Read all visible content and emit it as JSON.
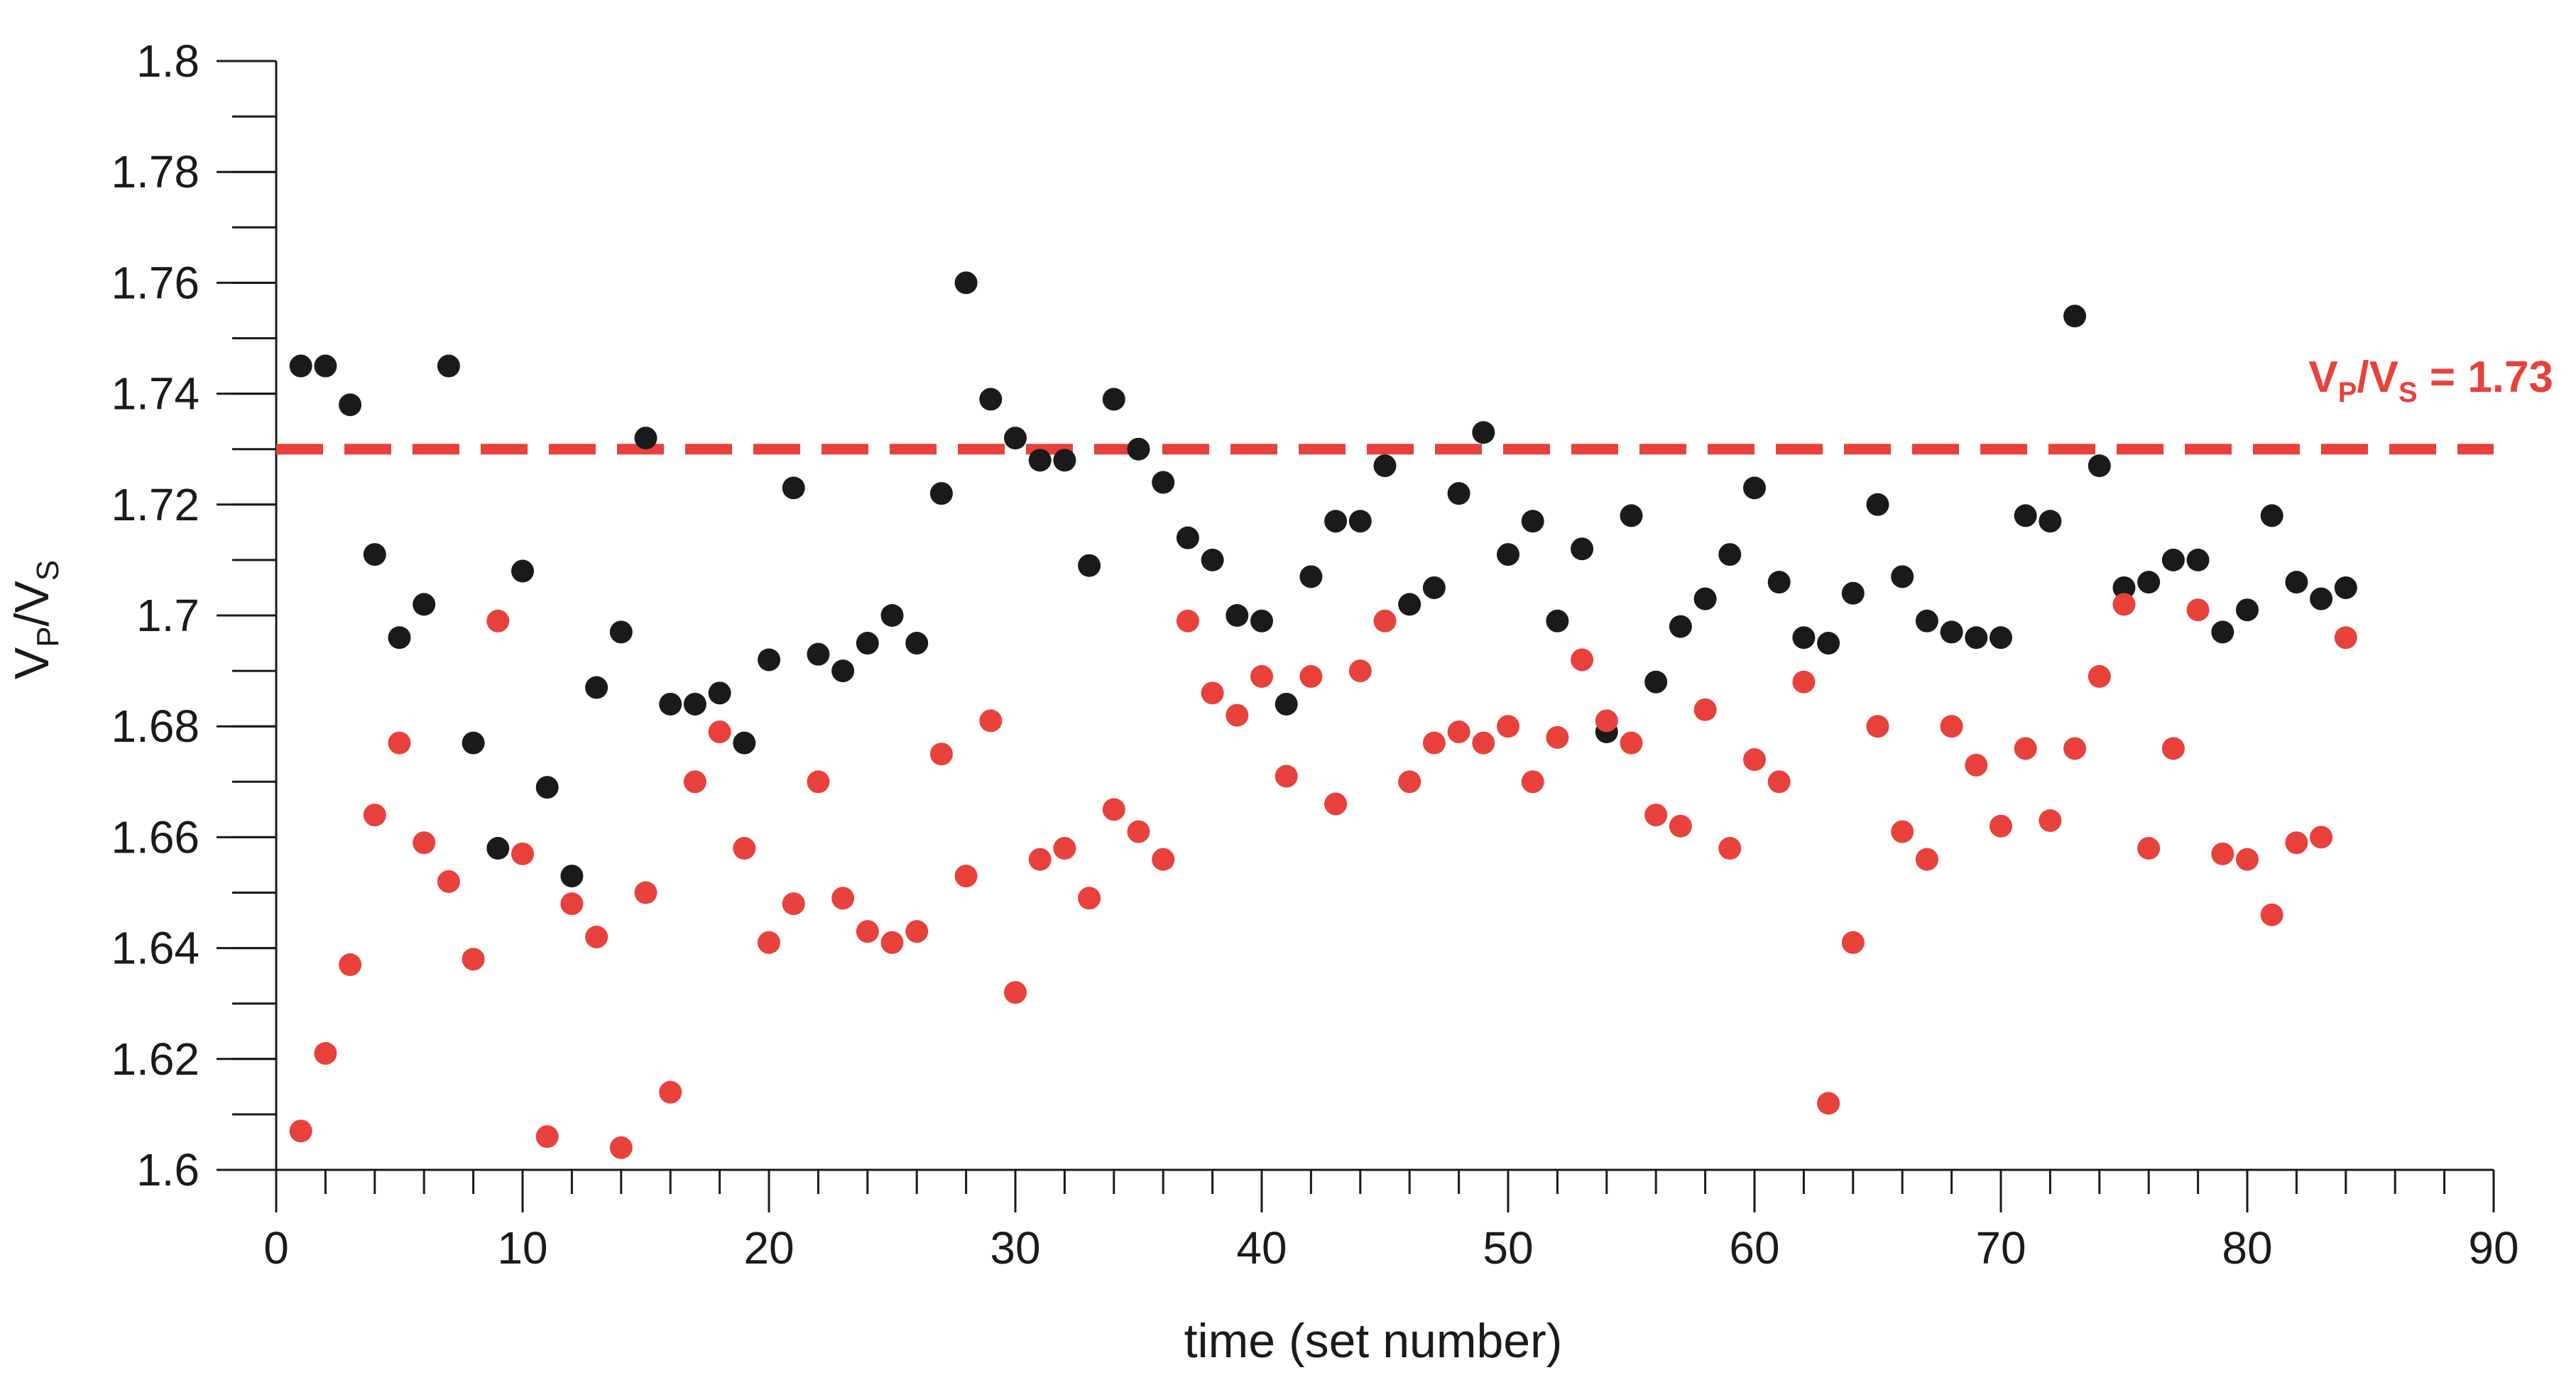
{
  "chart_data": {
    "type": "scatter",
    "title": "",
    "xlabel": "time (set number)",
    "ylabel": {
      "base": "V",
      "sub1": "P",
      "mid": "/V",
      "sub2": "S"
    },
    "xlim": [
      0,
      90
    ],
    "ylim": [
      1.6,
      1.8
    ],
    "x_ticks": [
      "0",
      "10",
      "20",
      "30",
      "40",
      "50",
      "60",
      "70",
      "80",
      "90"
    ],
    "x_minor_step": 2,
    "y_ticks": [
      "1.6",
      "1.62",
      "1.64",
      "1.66",
      "1.68",
      "1.7",
      "1.72",
      "1.74",
      "1.76",
      "1.78",
      "1.8"
    ],
    "y_minor_step": 0.01,
    "grid": false,
    "reference_line": {
      "y": 1.73,
      "style": "dashed",
      "color": "#e8413c",
      "label": {
        "base": "V",
        "sub1": "P",
        "mid": "/V",
        "sub2": "S",
        "tail": " = 1.73"
      }
    },
    "series": [
      {
        "color": "#1a1a1a",
        "points": [
          [
            1,
            1.745
          ],
          [
            2,
            1.745
          ],
          [
            3,
            1.738
          ],
          [
            4,
            1.711
          ],
          [
            5,
            1.696
          ],
          [
            6,
            1.702
          ],
          [
            7,
            1.745
          ],
          [
            8,
            1.677
          ],
          [
            9,
            1.658
          ],
          [
            10,
            1.708
          ],
          [
            11,
            1.669
          ],
          [
            12,
            1.653
          ],
          [
            13,
            1.687
          ],
          [
            14,
            1.697
          ],
          [
            15,
            1.732
          ],
          [
            16,
            1.684
          ],
          [
            17,
            1.684
          ],
          [
            18,
            1.686
          ],
          [
            19,
            1.677
          ],
          [
            20,
            1.692
          ],
          [
            21,
            1.723
          ],
          [
            22,
            1.693
          ],
          [
            23,
            1.69
          ],
          [
            24,
            1.695
          ],
          [
            25,
            1.7
          ],
          [
            26,
            1.695
          ],
          [
            27,
            1.722
          ],
          [
            28,
            1.76
          ],
          [
            29,
            1.739
          ],
          [
            30,
            1.732
          ],
          [
            31,
            1.728
          ],
          [
            32,
            1.728
          ],
          [
            33,
            1.709
          ],
          [
            34,
            1.739
          ],
          [
            35,
            1.73
          ],
          [
            36,
            1.724
          ],
          [
            37,
            1.714
          ],
          [
            38,
            1.71
          ],
          [
            39,
            1.7
          ],
          [
            40,
            1.699
          ],
          [
            41,
            1.684
          ],
          [
            42,
            1.707
          ],
          [
            43,
            1.717
          ],
          [
            44,
            1.717
          ],
          [
            45,
            1.727
          ],
          [
            46,
            1.702
          ],
          [
            47,
            1.705
          ],
          [
            48,
            1.722
          ],
          [
            49,
            1.733
          ],
          [
            50,
            1.711
          ],
          [
            51,
            1.717
          ],
          [
            52,
            1.699
          ],
          [
            53,
            1.712
          ],
          [
            54,
            1.679
          ],
          [
            55,
            1.718
          ],
          [
            56,
            1.688
          ],
          [
            57,
            1.698
          ],
          [
            58,
            1.703
          ],
          [
            59,
            1.711
          ],
          [
            60,
            1.723
          ],
          [
            61,
            1.706
          ],
          [
            62,
            1.696
          ],
          [
            63,
            1.695
          ],
          [
            64,
            1.704
          ],
          [
            65,
            1.72
          ],
          [
            66,
            1.707
          ],
          [
            67,
            1.699
          ],
          [
            68,
            1.697
          ],
          [
            69,
            1.696
          ],
          [
            70,
            1.696
          ],
          [
            71,
            1.718
          ],
          [
            72,
            1.717
          ],
          [
            73,
            1.754
          ],
          [
            74,
            1.727
          ],
          [
            75,
            1.705
          ],
          [
            76,
            1.706
          ],
          [
            77,
            1.71
          ],
          [
            78,
            1.71
          ],
          [
            79,
            1.697
          ],
          [
            80,
            1.701
          ],
          [
            81,
            1.718
          ],
          [
            82,
            1.706
          ],
          [
            83,
            1.703
          ],
          [
            84,
            1.705
          ]
        ]
      },
      {
        "color": "#e8413c",
        "points": [
          [
            1,
            1.607
          ],
          [
            2,
            1.621
          ],
          [
            3,
            1.637
          ],
          [
            4,
            1.664
          ],
          [
            5,
            1.677
          ],
          [
            6,
            1.659
          ],
          [
            7,
            1.652
          ],
          [
            8,
            1.638
          ],
          [
            9,
            1.699
          ],
          [
            10,
            1.657
          ],
          [
            11,
            1.606
          ],
          [
            12,
            1.648
          ],
          [
            13,
            1.642
          ],
          [
            14,
            1.604
          ],
          [
            15,
            1.65
          ],
          [
            16,
            1.614
          ],
          [
            17,
            1.67
          ],
          [
            18,
            1.679
          ],
          [
            19,
            1.658
          ],
          [
            20,
            1.641
          ],
          [
            21,
            1.648
          ],
          [
            22,
            1.67
          ],
          [
            23,
            1.649
          ],
          [
            24,
            1.643
          ],
          [
            25,
            1.641
          ],
          [
            26,
            1.643
          ],
          [
            27,
            1.675
          ],
          [
            28,
            1.653
          ],
          [
            29,
            1.681
          ],
          [
            30,
            1.632
          ],
          [
            31,
            1.656
          ],
          [
            32,
            1.658
          ],
          [
            33,
            1.649
          ],
          [
            34,
            1.665
          ],
          [
            35,
            1.661
          ],
          [
            36,
            1.656
          ],
          [
            37,
            1.699
          ],
          [
            38,
            1.686
          ],
          [
            39,
            1.682
          ],
          [
            40,
            1.689
          ],
          [
            41,
            1.671
          ],
          [
            42,
            1.689
          ],
          [
            43,
            1.666
          ],
          [
            44,
            1.69
          ],
          [
            45,
            1.699
          ],
          [
            46,
            1.67
          ],
          [
            47,
            1.677
          ],
          [
            48,
            1.679
          ],
          [
            49,
            1.677
          ],
          [
            50,
            1.68
          ],
          [
            51,
            1.67
          ],
          [
            52,
            1.678
          ],
          [
            53,
            1.692
          ],
          [
            54,
            1.681
          ],
          [
            55,
            1.677
          ],
          [
            56,
            1.664
          ],
          [
            57,
            1.662
          ],
          [
            58,
            1.683
          ],
          [
            59,
            1.658
          ],
          [
            60,
            1.674
          ],
          [
            61,
            1.67
          ],
          [
            62,
            1.688
          ],
          [
            63,
            1.612
          ],
          [
            64,
            1.641
          ],
          [
            65,
            1.68
          ],
          [
            66,
            1.661
          ],
          [
            67,
            1.656
          ],
          [
            68,
            1.68
          ],
          [
            69,
            1.673
          ],
          [
            70,
            1.662
          ],
          [
            71,
            1.676
          ],
          [
            72,
            1.663
          ],
          [
            73,
            1.676
          ],
          [
            74,
            1.689
          ],
          [
            75,
            1.702
          ],
          [
            76,
            1.658
          ],
          [
            77,
            1.676
          ],
          [
            78,
            1.701
          ],
          [
            79,
            1.657
          ],
          [
            80,
            1.656
          ],
          [
            81,
            1.646
          ],
          [
            82,
            1.659
          ],
          [
            83,
            1.66
          ],
          [
            84,
            1.696
          ]
        ]
      }
    ]
  }
}
